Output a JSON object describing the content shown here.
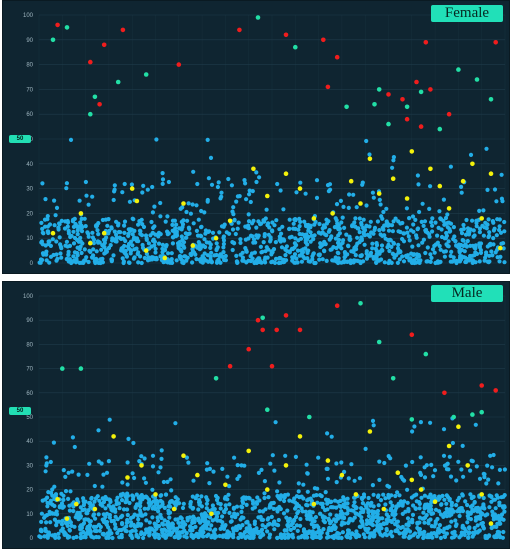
{
  "palette": {
    "background": "#0f2531",
    "grid": "#1f3b4a",
    "tick": "#9fb6c0",
    "badge_bg": "#21e0b8",
    "blue": "#22aee8",
    "yellow": "#f4f20a",
    "teal": "#22dfa6",
    "red": "#f01d1d"
  },
  "chart_data": [
    {
      "type": "scatter",
      "title": "Female",
      "xlabel": "",
      "ylabel": "",
      "side_label": "50",
      "top_label": "",
      "ylim": [
        0,
        100
      ],
      "yticks": [
        0,
        10,
        20,
        30,
        40,
        50,
        60,
        70,
        80,
        90,
        100
      ],
      "grid": true,
      "n_points": 1300,
      "highlight_series": [
        {
          "color": "red",
          "points": [
            [
              4,
              96
            ],
            [
              14,
              88
            ],
            [
              18,
              94
            ],
            [
              11,
              81
            ],
            [
              13,
              64
            ],
            [
              30,
              80
            ],
            [
              43,
              94
            ],
            [
              53,
              92
            ],
            [
              61,
              90
            ],
            [
              62,
              71
            ],
            [
              64,
              83
            ],
            [
              75,
              68
            ],
            [
              78,
              66
            ],
            [
              79,
              58
            ],
            [
              81,
              73
            ],
            [
              83,
              89
            ],
            [
              82,
              55
            ],
            [
              84,
              70
            ],
            [
              88,
              60
            ],
            [
              98,
              89
            ]
          ]
        },
        {
          "color": "teal",
          "points": [
            [
              3,
              90
            ],
            [
              6,
              95
            ],
            [
              11,
              60
            ],
            [
              12,
              67
            ],
            [
              17,
              73
            ],
            [
              23,
              76
            ],
            [
              47,
              99
            ],
            [
              55,
              87
            ],
            [
              66,
              63
            ],
            [
              72,
              64
            ],
            [
              73,
              70
            ],
            [
              75,
              56
            ],
            [
              79,
              63
            ],
            [
              82,
              69
            ],
            [
              86,
              54
            ],
            [
              90,
              78
            ],
            [
              94,
              74
            ],
            [
              97,
              66
            ]
          ]
        },
        {
          "color": "yellow",
          "points": [
            [
              3,
              12
            ],
            [
              9,
              20
            ],
            [
              11,
              8
            ],
            [
              14,
              12
            ],
            [
              20,
              30
            ],
            [
              21,
              25
            ],
            [
              23,
              5
            ],
            [
              27,
              2
            ],
            [
              31,
              24
            ],
            [
              33,
              7
            ],
            [
              38,
              10
            ],
            [
              41,
              17
            ],
            [
              46,
              38
            ],
            [
              49,
              27
            ],
            [
              53,
              36
            ],
            [
              56,
              30
            ],
            [
              59,
              18
            ],
            [
              63,
              20
            ],
            [
              67,
              33
            ],
            [
              69,
              24
            ],
            [
              71,
              42
            ],
            [
              73,
              28
            ],
            [
              76,
              34
            ],
            [
              79,
              26
            ],
            [
              80,
              45
            ],
            [
              84,
              38
            ],
            [
              86,
              31
            ],
            [
              88,
              22
            ],
            [
              91,
              33
            ],
            [
              93,
              40
            ],
            [
              95,
              18
            ],
            [
              97,
              36
            ],
            [
              99,
              6
            ]
          ]
        }
      ]
    },
    {
      "type": "scatter",
      "title": "Male",
      "xlabel": "",
      "ylabel": "",
      "side_label": "50",
      "ylim": [
        0,
        100
      ],
      "yticks": [
        0,
        10,
        20,
        30,
        40,
        50,
        60,
        70,
        80,
        90,
        100
      ],
      "grid": true,
      "n_points": 1600,
      "highlight_series": [
        {
          "color": "red",
          "points": [
            [
              41,
              71
            ],
            [
              45,
              78
            ],
            [
              47,
              90
            ],
            [
              48,
              86
            ],
            [
              50,
              71
            ],
            [
              51,
              86
            ],
            [
              53,
              92
            ],
            [
              56,
              86
            ],
            [
              64,
              96
            ],
            [
              80,
              84
            ],
            [
              87,
              60
            ],
            [
              95,
              63
            ],
            [
              98,
              61
            ]
          ]
        },
        {
          "color": "teal",
          "points": [
            [
              5,
              70
            ],
            [
              9,
              70
            ],
            [
              38,
              66
            ],
            [
              48,
              91
            ],
            [
              49,
              53
            ],
            [
              58,
              50
            ],
            [
              69,
              97
            ],
            [
              73,
              81
            ],
            [
              76,
              66
            ],
            [
              80,
              49
            ],
            [
              83,
              76
            ],
            [
              89,
              50
            ],
            [
              93,
              51
            ],
            [
              95,
              52
            ]
          ]
        },
        {
          "color": "yellow",
          "points": [
            [
              4,
              16
            ],
            [
              6,
              8
            ],
            [
              8,
              14
            ],
            [
              12,
              12
            ],
            [
              16,
              42
            ],
            [
              19,
              25
            ],
            [
              22,
              30
            ],
            [
              25,
              18
            ],
            [
              29,
              12
            ],
            [
              31,
              34
            ],
            [
              34,
              26
            ],
            [
              37,
              10
            ],
            [
              40,
              22
            ],
            [
              45,
              36
            ],
            [
              49,
              20
            ],
            [
              53,
              30
            ],
            [
              56,
              42
            ],
            [
              59,
              14
            ],
            [
              62,
              32
            ],
            [
              65,
              26
            ],
            [
              68,
              18
            ],
            [
              71,
              44
            ],
            [
              74,
              12
            ],
            [
              77,
              27
            ],
            [
              80,
              24
            ],
            [
              82,
              20
            ],
            [
              85,
              15
            ],
            [
              88,
              38
            ],
            [
              90,
              46
            ],
            [
              92,
              30
            ],
            [
              95,
              18
            ],
            [
              97,
              6
            ]
          ]
        }
      ]
    }
  ]
}
